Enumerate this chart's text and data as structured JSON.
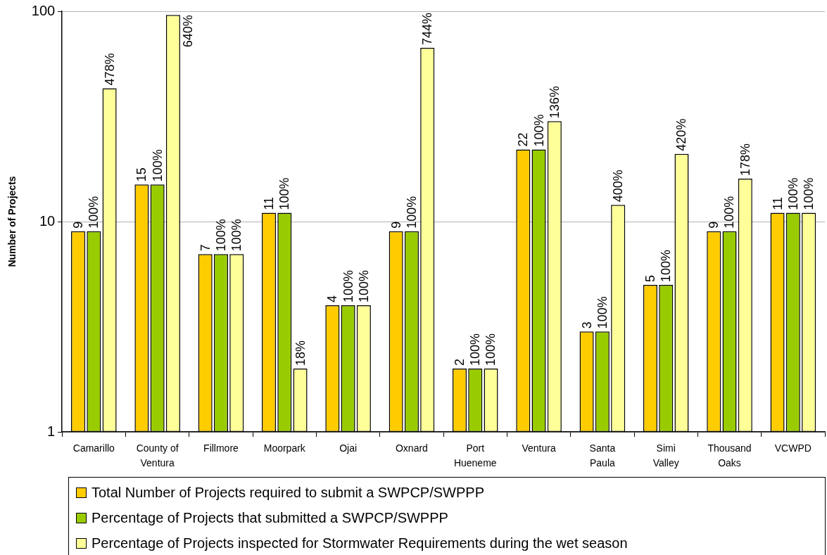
{
  "chart_data": {
    "type": "bar",
    "ylabel": "Number of Projects",
    "categories": [
      "Camarillo",
      "County of Ventura",
      "Fillmore",
      "Moorpark",
      "Ojai",
      "Oxnard",
      "Port Hueneme",
      "Ventura",
      "Santa Paula",
      "Simi Valley",
      "Thousand Oaks",
      "VCWPD"
    ],
    "series": [
      {
        "name": "Total Number of Projects required to submit a SWPCP/SWPPP",
        "color": "#ffcc00",
        "values": [
          9,
          15,
          7,
          11,
          4,
          9,
          2,
          22,
          3,
          5,
          9,
          11
        ],
        "value_labels": [
          "9",
          "15",
          "7",
          "11",
          "4",
          "9",
          "2",
          "22",
          "3",
          "5",
          "9",
          "11"
        ]
      },
      {
        "name": "Percentage of Projects that submitted a SWPCP/SWPPP",
        "color": "#99cc00",
        "values": [
          9,
          15,
          7,
          11,
          4,
          9,
          2,
          22,
          3,
          5,
          9,
          11
        ]
      },
      {
        "name": "Percentage of Projects inspected for Stormwater Requirements during the wet season",
        "color": "#ffff99",
        "values": [
          43,
          96,
          7,
          2,
          4,
          67,
          2,
          30,
          12,
          21,
          16,
          11
        ]
      }
    ],
    "annotations": [
      {
        "text": "100%",
        "x": "Camarillo",
        "y": 9
      },
      "478%",
      {
        "text": "100%",
        "x": "County of Ventura",
        "y": 15
      },
      "640%",
      {
        "text": "100%",
        "x": "Fillmore",
        "y": 7
      },
      "100%",
      {
        "text": "100%",
        "x": "Moorpark",
        "y": 11
      },
      "18%",
      {
        "text": "100%",
        "x": "Ojai",
        "y": 4
      },
      "100%",
      {
        "text": "100%",
        "x": "Oxnard",
        "y": 9
      },
      "744%",
      {
        "text": "100%",
        "x": "Port Hueneme",
        "y": 2
      },
      "100%",
      {
        "text": "100%",
        "x": "Ventura",
        "y": 22
      },
      "136%",
      {
        "text": "100%",
        "x": "Santa Paula",
        "y": 3
      },
      "400%",
      {
        "text": "100%",
        "x": "Simi Valley",
        "y": 5
      },
      "420%",
      {
        "text": "100%",
        "x": "Thousand Oaks",
        "y": 9
      },
      "178%",
      {
        "text": "100%",
        "x": "VCWPD",
        "y": 11
      },
      "100%"
    ],
    "ylim": [
      1,
      100
    ],
    "yticks": [
      1,
      10,
      100
    ],
    "log": true,
    "grid": "y",
    "legend": "bottom"
  }
}
